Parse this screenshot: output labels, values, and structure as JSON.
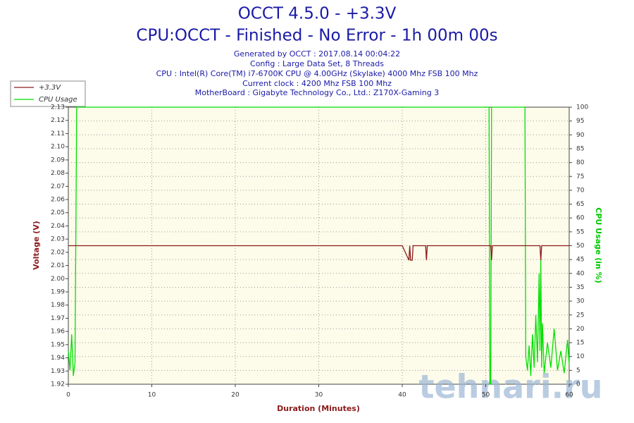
{
  "chart_data": {
    "type": "line",
    "title": "OCCT 4.5.0 - +3.3V",
    "subtitle": "CPU:OCCT - Finished - No Error - 1h 00m 00s",
    "info_lines": [
      "Generated by OCCT : 2017.08.14 00:04:22",
      "Config : Large Data Set, 8 Threads",
      "CPU : Intel(R) Core(TM) i7-6700K CPU @ 4.00GHz (Skylake) 4000 Mhz FSB 100 Mhz",
      "Current clock : 4200 Mhz FSB 100 Mhz",
      "MotherBoard : Gigabyte Technology Co., Ltd.: Z170X-Gaming 3"
    ],
    "xlabel": "Duration (Minutes)",
    "ylabel": "Voltage (V)",
    "y2label": "CPU Usage (in %)",
    "watermark": "tehnari.ru",
    "legend": "top-left",
    "grid": true,
    "xlim": [
      0,
      60
    ],
    "xticks": [
      0,
      10,
      20,
      30,
      40,
      50,
      60
    ],
    "ylim": [
      1.92,
      2.13
    ],
    "yticks": [
      1.92,
      1.93,
      1.94,
      1.95,
      1.96,
      1.97,
      1.98,
      1.99,
      {
        "value": 2,
        "label": "2.00"
      },
      2.01,
      2.02,
      2.03,
      2.04,
      2.05,
      2.06,
      2.07,
      2.08,
      2.09,
      {
        "value": 2.1,
        "label": "2.10"
      },
      2.11,
      2.12,
      2.13
    ],
    "y2lim": [
      0,
      100
    ],
    "y2ticks": [
      0,
      5,
      10,
      15,
      20,
      25,
      30,
      35,
      40,
      45,
      50,
      55,
      60,
      65,
      70,
      75,
      80,
      85,
      90,
      95,
      100
    ],
    "x": [
      0,
      0.2,
      0.4,
      0.6,
      0.8,
      1.0,
      1.1,
      5,
      10,
      15,
      20,
      25,
      30,
      35,
      40,
      40.8,
      40.9,
      41.0,
      41.2,
      41.3,
      42.8,
      42.9,
      43.0,
      45,
      50,
      50.4,
      50.5,
      50.6,
      50.7,
      50.8,
      54.6,
      54.7,
      54.8,
      55.0,
      55.2,
      55.4,
      55.6,
      55.8,
      56.0,
      56.2,
      56.4,
      56.5,
      56.6,
      56.7,
      56.8,
      57.0,
      57.4,
      57.8,
      58.2,
      58.6,
      59.0,
      59.4,
      59.8,
      60
    ],
    "series": [
      {
        "name": "+3.3V",
        "color": "#8b1a1a",
        "values": [
          2.025,
          2.025,
          2.025,
          2.025,
          2.025,
          2.025,
          2.025,
          2.025,
          2.025,
          2.025,
          2.025,
          2.025,
          2.025,
          2.025,
          2.025,
          2.014,
          2.025,
          2.014,
          2.014,
          2.025,
          2.025,
          2.014,
          2.025,
          2.025,
          2.025,
          2.025,
          2.025,
          2.025,
          2.014,
          2.025,
          2.025,
          2.025,
          2.025,
          2.025,
          2.025,
          2.025,
          2.025,
          2.025,
          2.025,
          2.025,
          2.025,
          2.025,
          2.014,
          2.025,
          2.025,
          2.025,
          2.025,
          2.025,
          2.025,
          2.025,
          2.025,
          2.025,
          2.025,
          2.025
        ]
      },
      {
        "name": "CPU Usage",
        "color": "#00e000",
        "axis": "y2",
        "values": [
          12,
          5,
          18,
          3,
          8,
          100,
          100,
          100,
          100,
          100,
          100,
          100,
          100,
          100,
          100,
          100,
          100,
          100,
          100,
          100,
          100,
          100,
          100,
          100,
          100,
          100,
          0,
          0,
          100,
          100,
          100,
          100,
          10,
          5,
          14,
          3,
          18,
          6,
          25,
          8,
          40,
          12,
          45,
          6,
          22,
          4,
          15,
          6,
          20,
          5,
          12,
          4,
          16,
          7
        ]
      }
    ]
  }
}
